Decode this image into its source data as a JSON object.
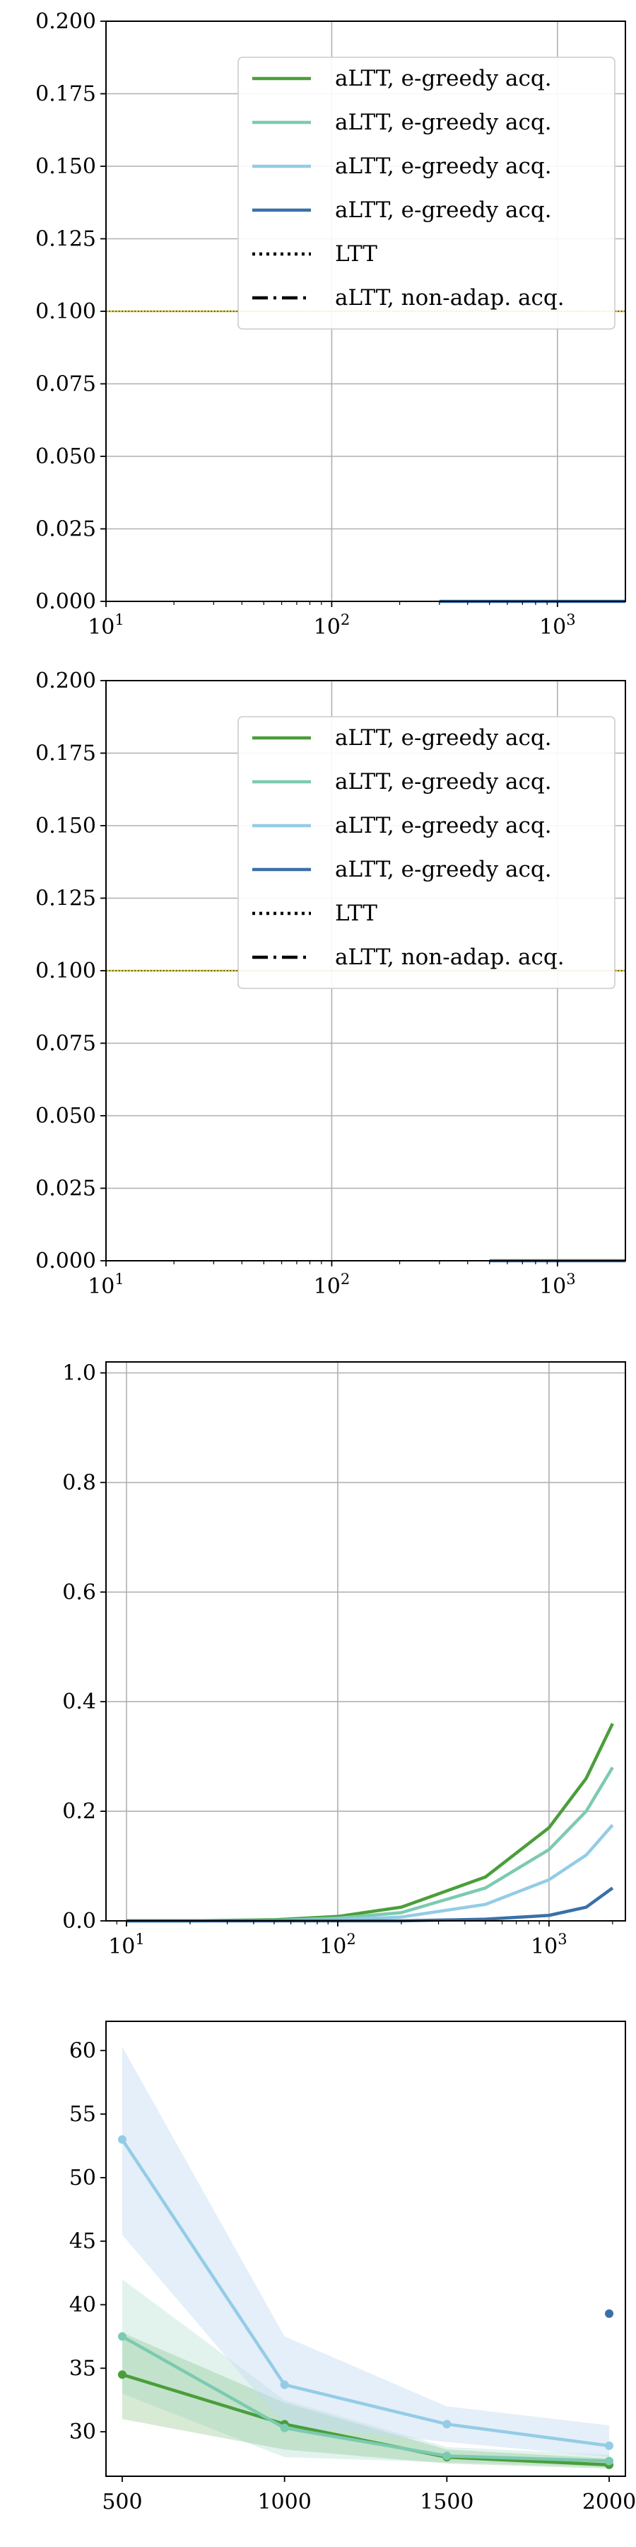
{
  "colors": {
    "green": "#4a9e3a",
    "teal": "#7ccab0",
    "light_blue": "#94cce6",
    "dark_blue": "#3a70a8",
    "yellow_line": "#d4c640",
    "grid": "#b0b0b0"
  },
  "chart_data": [
    {
      "type": "line",
      "xscale": "log",
      "xlim": [
        10,
        2000
      ],
      "ylim": [
        0,
        0.2
      ],
      "x_tick_labels": [
        "10^1",
        "10^2",
        "10^3"
      ],
      "y_tick_labels": [
        "0.000",
        "0.025",
        "0.050",
        "0.075",
        "0.100",
        "0.125",
        "0.150",
        "0.175",
        "0.200"
      ],
      "grid": true,
      "legend_position": "top-right",
      "legend": [
        {
          "label": "aLTT, e-greedy acq.",
          "color": "#4a9e3a",
          "style": "solid"
        },
        {
          "label": "aLTT, e-greedy acq.",
          "color": "#7ccab0",
          "style": "solid"
        },
        {
          "label": "aLTT, e-greedy acq.",
          "color": "#94cce6",
          "style": "solid"
        },
        {
          "label": "aLTT, e-greedy acq.",
          "color": "#3a70a8",
          "style": "solid"
        },
        {
          "label": "LTT",
          "color": "#000000",
          "style": "dotted"
        },
        {
          "label": "aLTT, non-adap. acq.",
          "color": "#000000",
          "style": "dashdot"
        }
      ],
      "reference_line": {
        "y": 0.1,
        "color": "#d4c640"
      },
      "series": [
        {
          "color": "#3a70a8",
          "x": [
            300,
            500,
            1000,
            1500,
            2000
          ],
          "y": [
            0,
            0,
            0,
            0,
            0
          ]
        }
      ]
    },
    {
      "type": "line",
      "xscale": "log",
      "xlim": [
        10,
        2000
      ],
      "ylim": [
        0,
        0.2
      ],
      "x_tick_labels": [
        "10^1",
        "10^2",
        "10^3"
      ],
      "y_tick_labels": [
        "0.000",
        "0.025",
        "0.050",
        "0.075",
        "0.100",
        "0.125",
        "0.150",
        "0.175",
        "0.200"
      ],
      "grid": true,
      "legend_position": "top-right",
      "legend": [
        {
          "label": "aLTT, e-greedy acq.",
          "color": "#4a9e3a",
          "style": "solid"
        },
        {
          "label": "aLTT, e-greedy acq.",
          "color": "#7ccab0",
          "style": "solid"
        },
        {
          "label": "aLTT, e-greedy acq.",
          "color": "#94cce6",
          "style": "solid"
        },
        {
          "label": "aLTT, e-greedy acq.",
          "color": "#3a70a8",
          "style": "solid"
        },
        {
          "label": "LTT",
          "color": "#000000",
          "style": "dotted"
        },
        {
          "label": "aLTT, non-adap. acq.",
          "color": "#000000",
          "style": "dashdot"
        }
      ],
      "reference_line": {
        "y": 0.1,
        "color": "#d4c640"
      },
      "series": [
        {
          "color": "#3a70a8",
          "x": [
            500,
            1000,
            1500,
            2000
          ],
          "y": [
            0,
            0,
            0,
            0
          ]
        }
      ]
    },
    {
      "type": "line",
      "xscale": "log",
      "xlim": [
        8,
        2300
      ],
      "ylim": [
        0,
        1.02
      ],
      "x_tick_labels": [
        "10^1",
        "10^2",
        "10^3"
      ],
      "y_tick_labels": [
        "0.0",
        "0.2",
        "0.4",
        "0.6",
        "0.8",
        "1.0"
      ],
      "grid": true,
      "series": [
        {
          "color": "#4a9e3a",
          "x": [
            10,
            20,
            50,
            100,
            200,
            500,
            1000,
            1500,
            2000
          ],
          "y": [
            0,
            0,
            0.002,
            0.008,
            0.025,
            0.08,
            0.17,
            0.26,
            0.36
          ]
        },
        {
          "color": "#7ccab0",
          "x": [
            10,
            20,
            50,
            100,
            200,
            500,
            1000,
            1500,
            2000
          ],
          "y": [
            0,
            0,
            0.001,
            0.005,
            0.015,
            0.06,
            0.13,
            0.2,
            0.28
          ]
        },
        {
          "color": "#94cce6",
          "x": [
            10,
            20,
            50,
            100,
            200,
            500,
            1000,
            1500,
            2000
          ],
          "y": [
            0,
            0,
            0,
            0.002,
            0.007,
            0.03,
            0.075,
            0.12,
            0.175
          ]
        },
        {
          "color": "#3a70a8",
          "x": [
            10,
            20,
            50,
            100,
            200,
            500,
            1000,
            1500,
            2000
          ],
          "y": [
            0,
            0,
            0,
            0,
            0,
            0.003,
            0.01,
            0.025,
            0.06
          ]
        }
      ]
    },
    {
      "type": "line",
      "xscale": "linear",
      "xlim": [
        450,
        2050
      ],
      "ylim": [
        26.5,
        62.3
      ],
      "x_tick_labels": [
        "500",
        "1000",
        "1500",
        "2000"
      ],
      "y_tick_labels": [
        "30",
        "35",
        "40",
        "45",
        "50",
        "55",
        "60"
      ],
      "grid": false,
      "series": [
        {
          "color": "#4a9e3a",
          "x": [
            500,
            1000,
            1500,
            2000
          ],
          "y": [
            34.5,
            30.6,
            28.0,
            27.4
          ],
          "band_low": [
            31.0,
            28.6,
            27.5,
            27.1
          ],
          "band_high": [
            37.8,
            32.3,
            28.6,
            27.9
          ]
        },
        {
          "color": "#7ccab0",
          "x": [
            500,
            1000,
            1500,
            2000
          ],
          "y": [
            37.5,
            30.3,
            28.1,
            27.7
          ],
          "band_low": [
            33.0,
            28.0,
            27.6,
            27.2
          ],
          "band_high": [
            42.0,
            32.5,
            28.8,
            28.2
          ]
        },
        {
          "color": "#94cce6",
          "x": [
            500,
            1000,
            1500,
            2000
          ],
          "y": [
            53.0,
            33.7,
            30.6,
            28.9
          ],
          "band_low": [
            45.5,
            30.5,
            29.2,
            28.0
          ],
          "band_high": [
            60.3,
            37.5,
            32.0,
            30.5
          ]
        },
        {
          "color": "#3a70a8",
          "x": [
            2000
          ],
          "y": [
            39.3
          ]
        }
      ]
    }
  ]
}
